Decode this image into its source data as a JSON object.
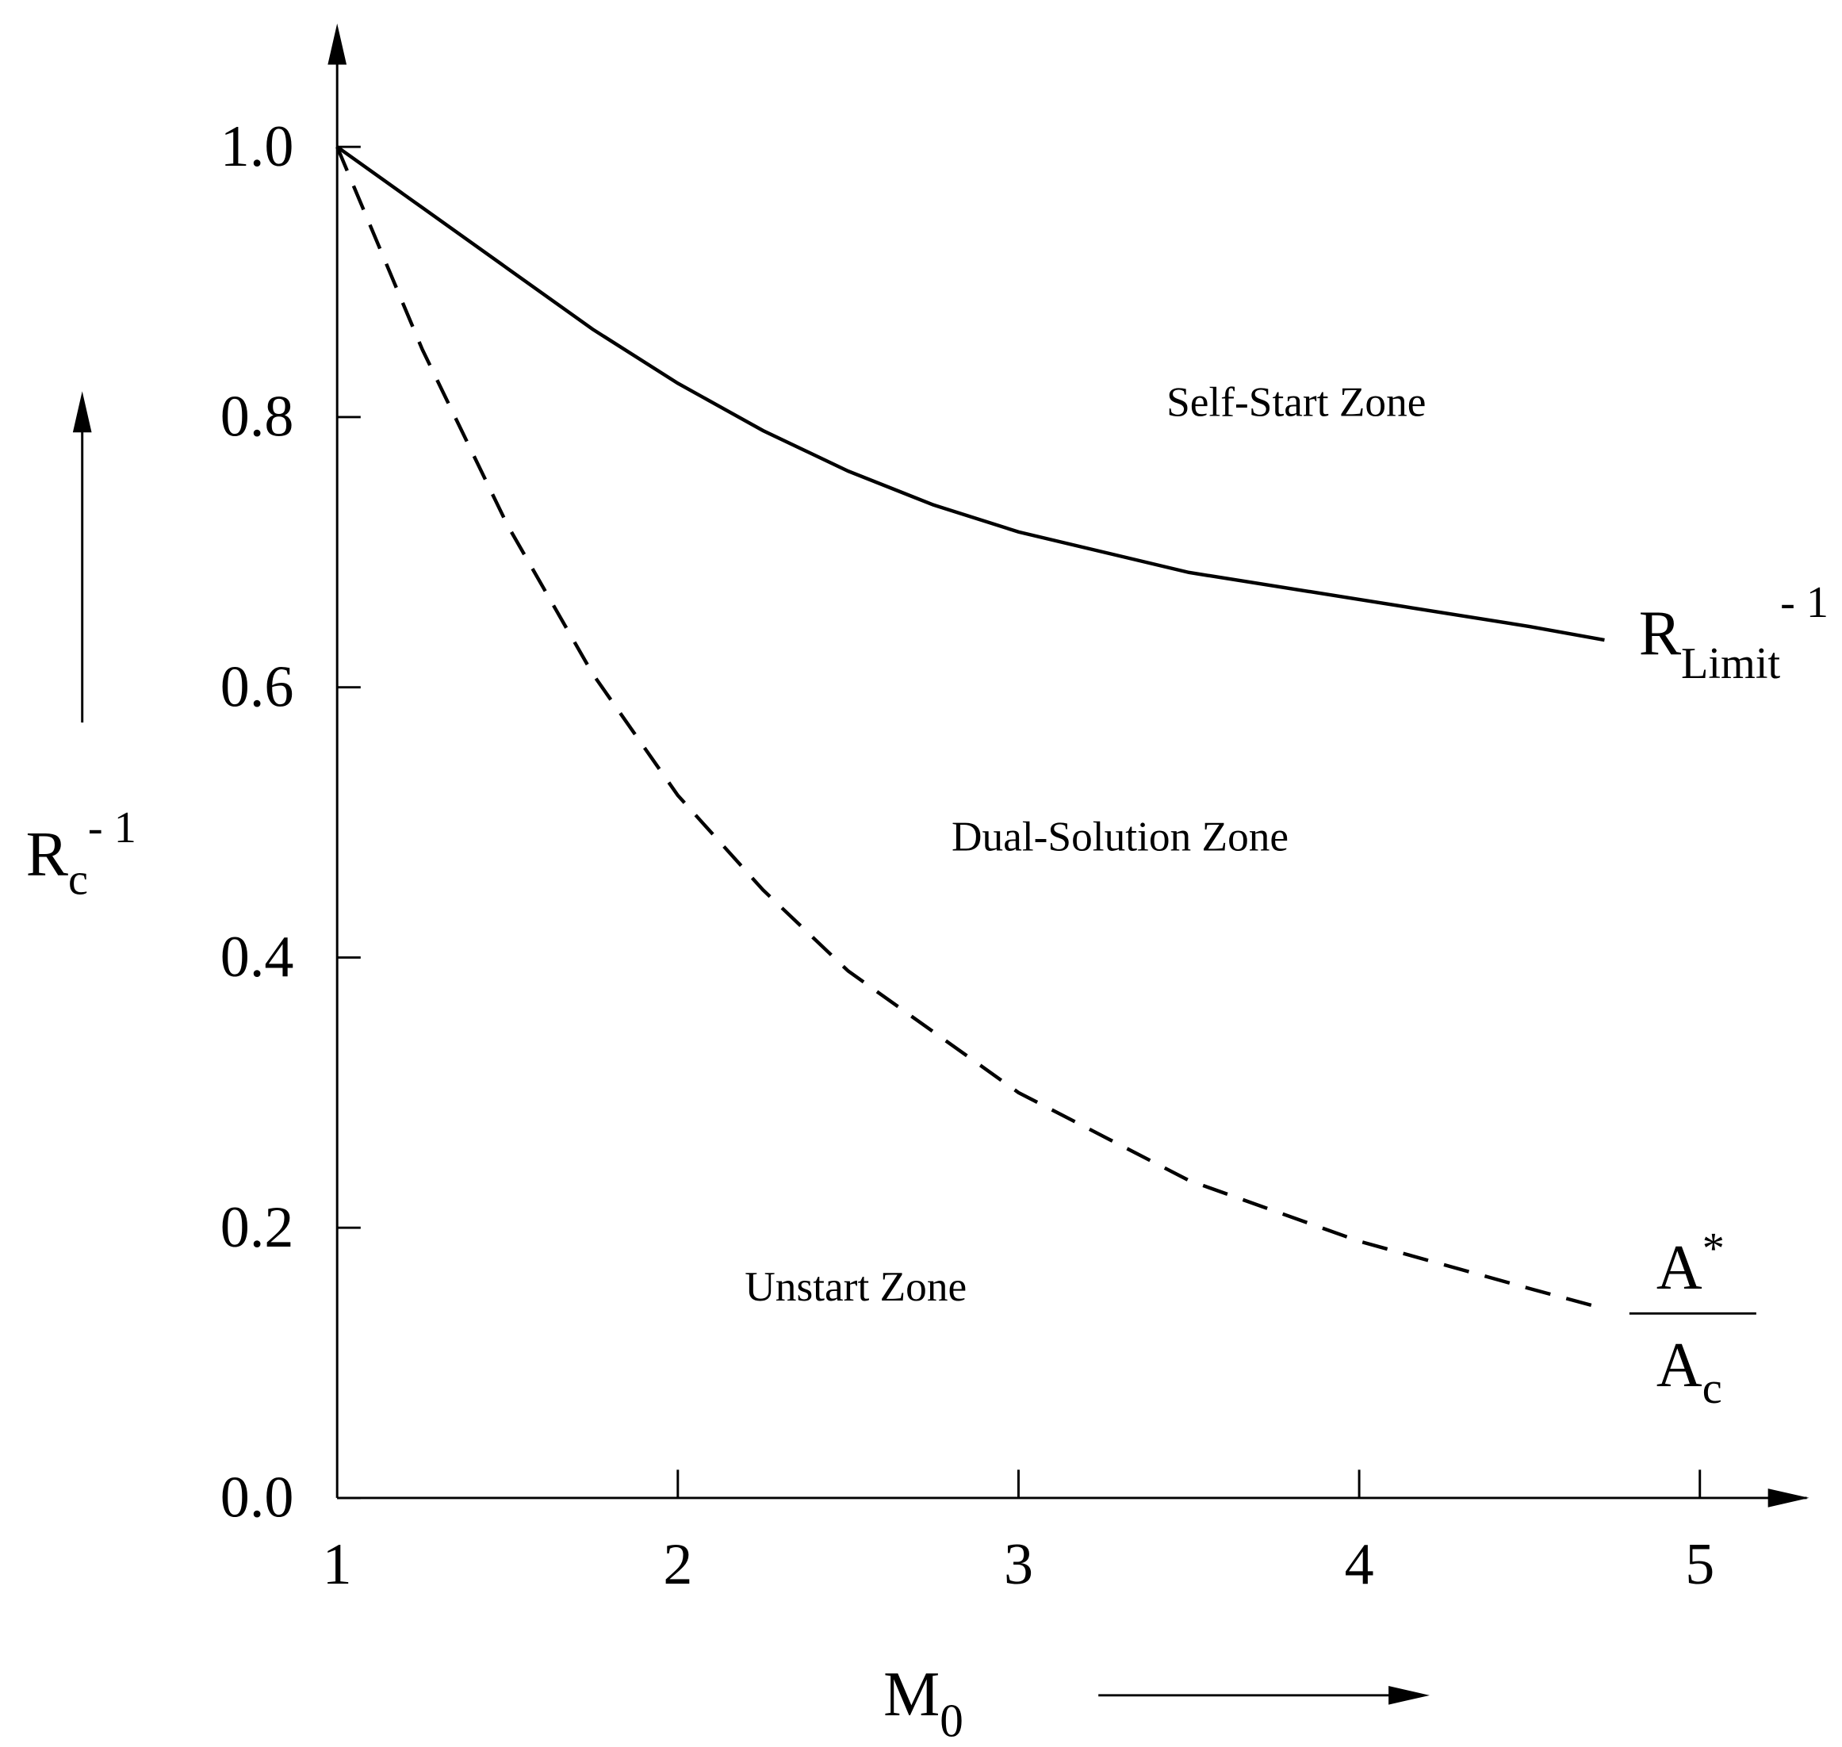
{
  "chart_data": {
    "type": "line",
    "x_label": {
      "base": "M",
      "sub": "0"
    },
    "y_label": {
      "base": "R",
      "sub": "c",
      "sup": "- 1"
    },
    "xlim": [
      1,
      5.25
    ],
    "ylim": [
      0,
      1.1
    ],
    "xticks": [
      1,
      2,
      3,
      4,
      5
    ],
    "yticks": [
      {
        "value": 0,
        "label": "0.0"
      },
      0.2,
      0.4,
      0.6,
      0.8,
      {
        "value": 1,
        "label": "1.0"
      }
    ],
    "grid": false,
    "series": [
      {
        "label": {
          "base": "R",
          "sub": "Limit",
          "sup": "- 1"
        },
        "color": "#000000",
        "dash": false,
        "x": [
          1,
          1.25,
          1.5,
          1.75,
          2,
          2.25,
          2.5,
          2.75,
          3,
          3.5,
          4,
          4.5,
          4.72
        ],
        "values": [
          1.0,
          0.955,
          0.91,
          0.865,
          0.825,
          0.79,
          0.76,
          0.735,
          0.715,
          0.685,
          0.665,
          0.645,
          0.635
        ]
      },
      {
        "label": {
          "num_base": "A",
          "num_sup": "*",
          "den_base": "A",
          "den_sub": "c"
        },
        "color": "#000000",
        "dash": true,
        "x": [
          1,
          1.25,
          1.5,
          1.75,
          2,
          2.25,
          2.5,
          3,
          3.5,
          4,
          4.5,
          4.72
        ],
        "values": [
          1.0,
          0.85,
          0.72,
          0.61,
          0.52,
          0.45,
          0.39,
          0.3,
          0.235,
          0.19,
          0.155,
          0.14
        ]
      }
    ],
    "annotations": [
      "Self-Start Zone",
      "Dual-Solution Zone",
      "Unstart Zone"
    ]
  }
}
